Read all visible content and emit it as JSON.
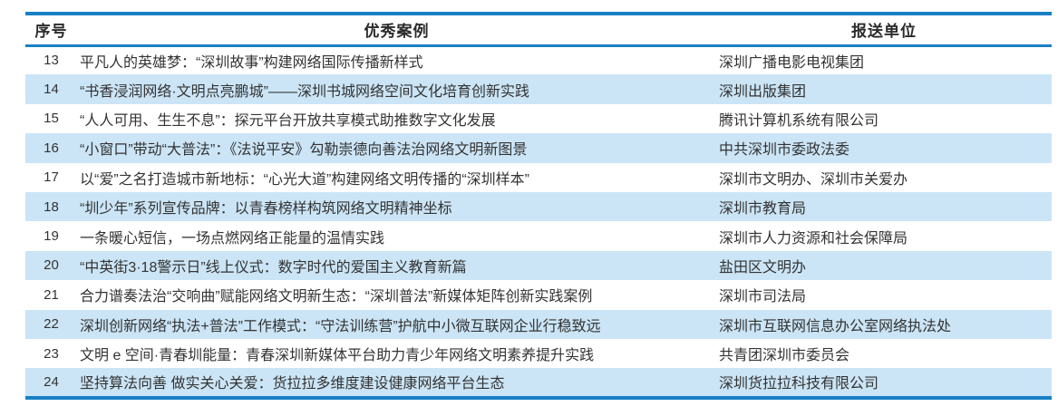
{
  "colors": {
    "accent_blue": "#1880c4",
    "stripe_blue": "#cbe5f6",
    "text": "#333333"
  },
  "table": {
    "columns": [
      {
        "key": "no",
        "label": "序号"
      },
      {
        "key": "case",
        "label": "优秀案例"
      },
      {
        "key": "unit",
        "label": "报送单位"
      }
    ],
    "rows": [
      {
        "no": "13",
        "case": "平凡人的英雄梦：“深圳故事”构建网络国际传播新样式",
        "unit": "深圳广播电影电视集团"
      },
      {
        "no": "14",
        "case": "“书香浸润网络·文明点亮鹏城”——深圳书城网络空间文化培育创新实践",
        "unit": "深圳出版集团"
      },
      {
        "no": "15",
        "case": "“人人可用、生生不息”：探元平台开放共享模式助推数字文化发展",
        "unit": "腾讯计算机系统有限公司"
      },
      {
        "no": "16",
        "case": "“小窗口”带动“大普法”：《法说平安》勾勒崇德向善法治网络文明新图景",
        "unit": "中共深圳市委政法委"
      },
      {
        "no": "17",
        "case": "以“爱”之名打造城市新地标：“心光大道”构建网络文明传播的“深圳样本”",
        "unit": "深圳市文明办、深圳市关爱办"
      },
      {
        "no": "18",
        "case": "“圳少年”系列宣传品牌：以青春榜样构筑网络文明精神坐标",
        "unit": "深圳市教育局"
      },
      {
        "no": "19",
        "case": "一条暖心短信，一场点燃网络正能量的温情实践",
        "unit": "深圳市人力资源和社会保障局"
      },
      {
        "no": "20",
        "case": "“中英街3·18警示日”线上仪式：数字时代的爱国主义教育新篇",
        "unit": "盐田区文明办"
      },
      {
        "no": "21",
        "case": "合力谱奏法治“交响曲”赋能网络文明新生态：“深圳普法”新媒体矩阵创新实践案例",
        "unit": "深圳市司法局"
      },
      {
        "no": "22",
        "case": "深圳创新网络“执法+普法”工作模式：“守法训练营”护航中小微互联网企业行稳致远",
        "unit": "深圳市互联网信息办公室网络执法处"
      },
      {
        "no": "23",
        "case": "文明 e 空间·青春圳能量：青春深圳新媒体平台助力青少年网络文明素养提升实践",
        "unit": "共青团深圳市委员会"
      },
      {
        "no": "24",
        "case": "坚持算法向善 做实关心关爱：货拉拉多维度建设健康网络平台生态",
        "unit": "深圳货拉拉科技有限公司"
      }
    ]
  }
}
